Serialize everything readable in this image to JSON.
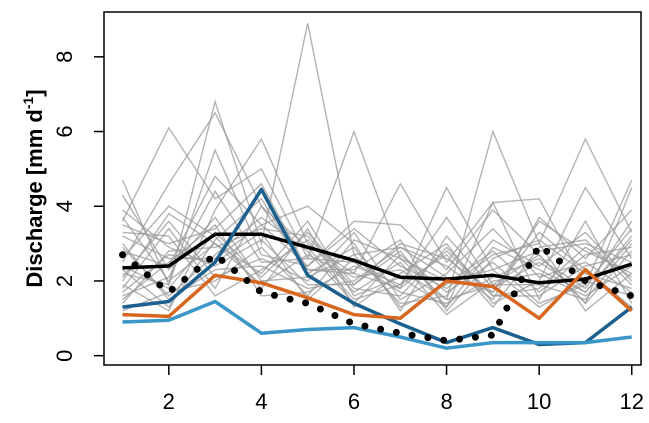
{
  "chart_data": {
    "type": "line",
    "title": "",
    "xlabel": "",
    "ylabel": "Discharge [mm d",
    "ylabel_sup": "-1",
    "ylabel_end": "]",
    "x": [
      1,
      2,
      3,
      4,
      5,
      6,
      7,
      8,
      9,
      10,
      11,
      12
    ],
    "xlim": [
      0.6,
      12.2
    ],
    "ylim": [
      -0.25,
      9.2
    ],
    "x_ticks": [
      2,
      4,
      6,
      8,
      10,
      12
    ],
    "y_ticks": [
      0,
      2,
      4,
      6,
      8
    ],
    "grid": false,
    "legend": "none",
    "ensemble_color": "#9a9a9a",
    "ensemble": [
      [
        4.7,
        1.9,
        6.8,
        3.0,
        8.9,
        2.7,
        2.9,
        2.1,
        1.7,
        3.6,
        2.8,
        2.2
      ],
      [
        3.6,
        6.1,
        4.2,
        5.0,
        2.6,
        6.0,
        2.6,
        1.5,
        6.0,
        3.0,
        5.8,
        3.3
      ],
      [
        2.5,
        4.6,
        6.5,
        4.0,
        2.3,
        2.2,
        4.6,
        2.5,
        4.1,
        4.2,
        1.9,
        4.7
      ],
      [
        1.9,
        1.2,
        3.9,
        5.8,
        3.0,
        2.2,
        1.8,
        4.5,
        2.3,
        2.8,
        3.0,
        2.5
      ],
      [
        3.2,
        2.6,
        2.6,
        3.5,
        2.4,
        3.6,
        3.5,
        2.3,
        3.9,
        2.7,
        1.4,
        4.5
      ],
      [
        2.0,
        3.8,
        3.0,
        2.2,
        3.6,
        1.6,
        2.1,
        1.3,
        4.1,
        1.5,
        3.6,
        1.4
      ],
      [
        2.8,
        2.4,
        4.8,
        3.5,
        4.0,
        3.0,
        1.2,
        3.2,
        1.8,
        2.5,
        1.7,
        3.2
      ],
      [
        3.5,
        3.0,
        3.4,
        4.6,
        2.3,
        2.3,
        3.1,
        1.2,
        2.6,
        3.1,
        2.2,
        1.8
      ],
      [
        1.4,
        2.8,
        2.9,
        3.4,
        3.2,
        1.8,
        1.6,
        2.9,
        1.6,
        1.6,
        2.4,
        2.7
      ],
      [
        2.2,
        1.9,
        5.5,
        2.7,
        2.4,
        3.4,
        2.4,
        1.8,
        2.7,
        3.0,
        1.2,
        2.2
      ],
      [
        3.0,
        1.5,
        2.3,
        2.4,
        1.8,
        2.0,
        2.9,
        2.4,
        1.5,
        3.7,
        2.6,
        3.9
      ],
      [
        1.8,
        3.4,
        1.8,
        4.0,
        2.9,
        1.5,
        1.9,
        3.7,
        1.9,
        1.9,
        1.5,
        3.0
      ],
      [
        4.3,
        2.3,
        3.7,
        2.0,
        2.1,
        2.7,
        1.4,
        1.6,
        3.1,
        2.4,
        3.3,
        2.0
      ],
      [
        1.2,
        1.7,
        2.0,
        2.9,
        1.6,
        3.1,
        2.6,
        2.0,
        2.3,
        1.3,
        2.0,
        1.6
      ],
      [
        2.6,
        4.0,
        3.2,
        1.8,
        3.4,
        1.3,
        2.2,
        3.0,
        1.4,
        2.0,
        4.5,
        2.6
      ],
      [
        1.6,
        2.1,
        4.4,
        2.5,
        2.6,
        2.5,
        1.7,
        1.4,
        2.1,
        2.6,
        1.8,
        3.6
      ],
      [
        3.9,
        2.9,
        2.4,
        3.1,
        1.9,
        1.9,
        3.0,
        2.6,
        1.7,
        3.3,
        2.3,
        1.3
      ],
      [
        2.3,
        1.3,
        3.1,
        4.2,
        2.2,
        2.9,
        1.3,
        1.9,
        2.8,
        1.7,
        2.7,
        2.9
      ],
      [
        3.3,
        3.2,
        1.6,
        2.3,
        3.1,
        1.7,
        2.5,
        1.1,
        2.0,
        2.2,
        1.6,
        2.4
      ],
      [
        1.5,
        2.5,
        3.5,
        1.6,
        1.7,
        2.4,
        1.9,
        2.7,
        1.3,
        2.9,
        3.1,
        1.9
      ],
      [
        2.9,
        1.6,
        2.7,
        3.7,
        2.8,
        1.4,
        2.7,
        1.7,
        2.5,
        1.4,
        1.9,
        3.4
      ],
      [
        2.1,
        3.6,
        2.1,
        2.6,
        2.0,
        3.3,
        1.5,
        2.2,
        3.4,
        2.1,
        2.5,
        1.7
      ],
      [
        3.7,
        2.0,
        3.0,
        1.9,
        2.7,
        2.1,
        2.3,
        1.5,
        1.9,
        2.7,
        1.4,
        2.8
      ],
      [
        1.7,
        2.7,
        2.5,
        3.3,
        1.5,
        2.6,
        1.8,
        2.8,
        1.6,
        1.8,
        2.9,
        2.1
      ],
      [
        2.4,
        1.8,
        3.3,
        2.1,
        3.3,
        1.9,
        2.8,
        1.3,
        2.9,
        2.3,
        1.7,
        3.1
      ]
    ],
    "series": [
      {
        "key": "black",
        "color": "#000000",
        "style": "solid",
        "values": [
          2.35,
          2.4,
          3.25,
          3.25,
          2.9,
          2.55,
          2.1,
          2.05,
          2.15,
          1.95,
          2.05,
          2.45
        ]
      },
      {
        "key": "darkblue",
        "color": "#1a5f8e",
        "style": "solid",
        "values": [
          1.3,
          1.45,
          2.5,
          4.45,
          2.15,
          1.4,
          0.85,
          0.35,
          0.75,
          0.3,
          0.35,
          1.3
        ]
      },
      {
        "key": "orange",
        "color": "#d9661f",
        "style": "solid",
        "values": [
          1.1,
          1.05,
          2.15,
          1.95,
          1.55,
          1.1,
          1.0,
          2.0,
          1.85,
          1.0,
          2.3,
          1.2
        ]
      },
      {
        "key": "lightblue",
        "color": "#3a96c8",
        "style": "solid",
        "values": [
          0.9,
          0.95,
          1.45,
          0.6,
          0.7,
          0.75,
          0.5,
          0.2,
          0.35,
          0.35,
          0.35,
          0.5
        ]
      },
      {
        "key": "dotted",
        "color": "#000000",
        "style": "dotted",
        "values": [
          2.7,
          1.7,
          2.7,
          1.7,
          1.4,
          0.85,
          0.6,
          0.4,
          0.55,
          2.95,
          2.0,
          1.6
        ]
      }
    ]
  }
}
